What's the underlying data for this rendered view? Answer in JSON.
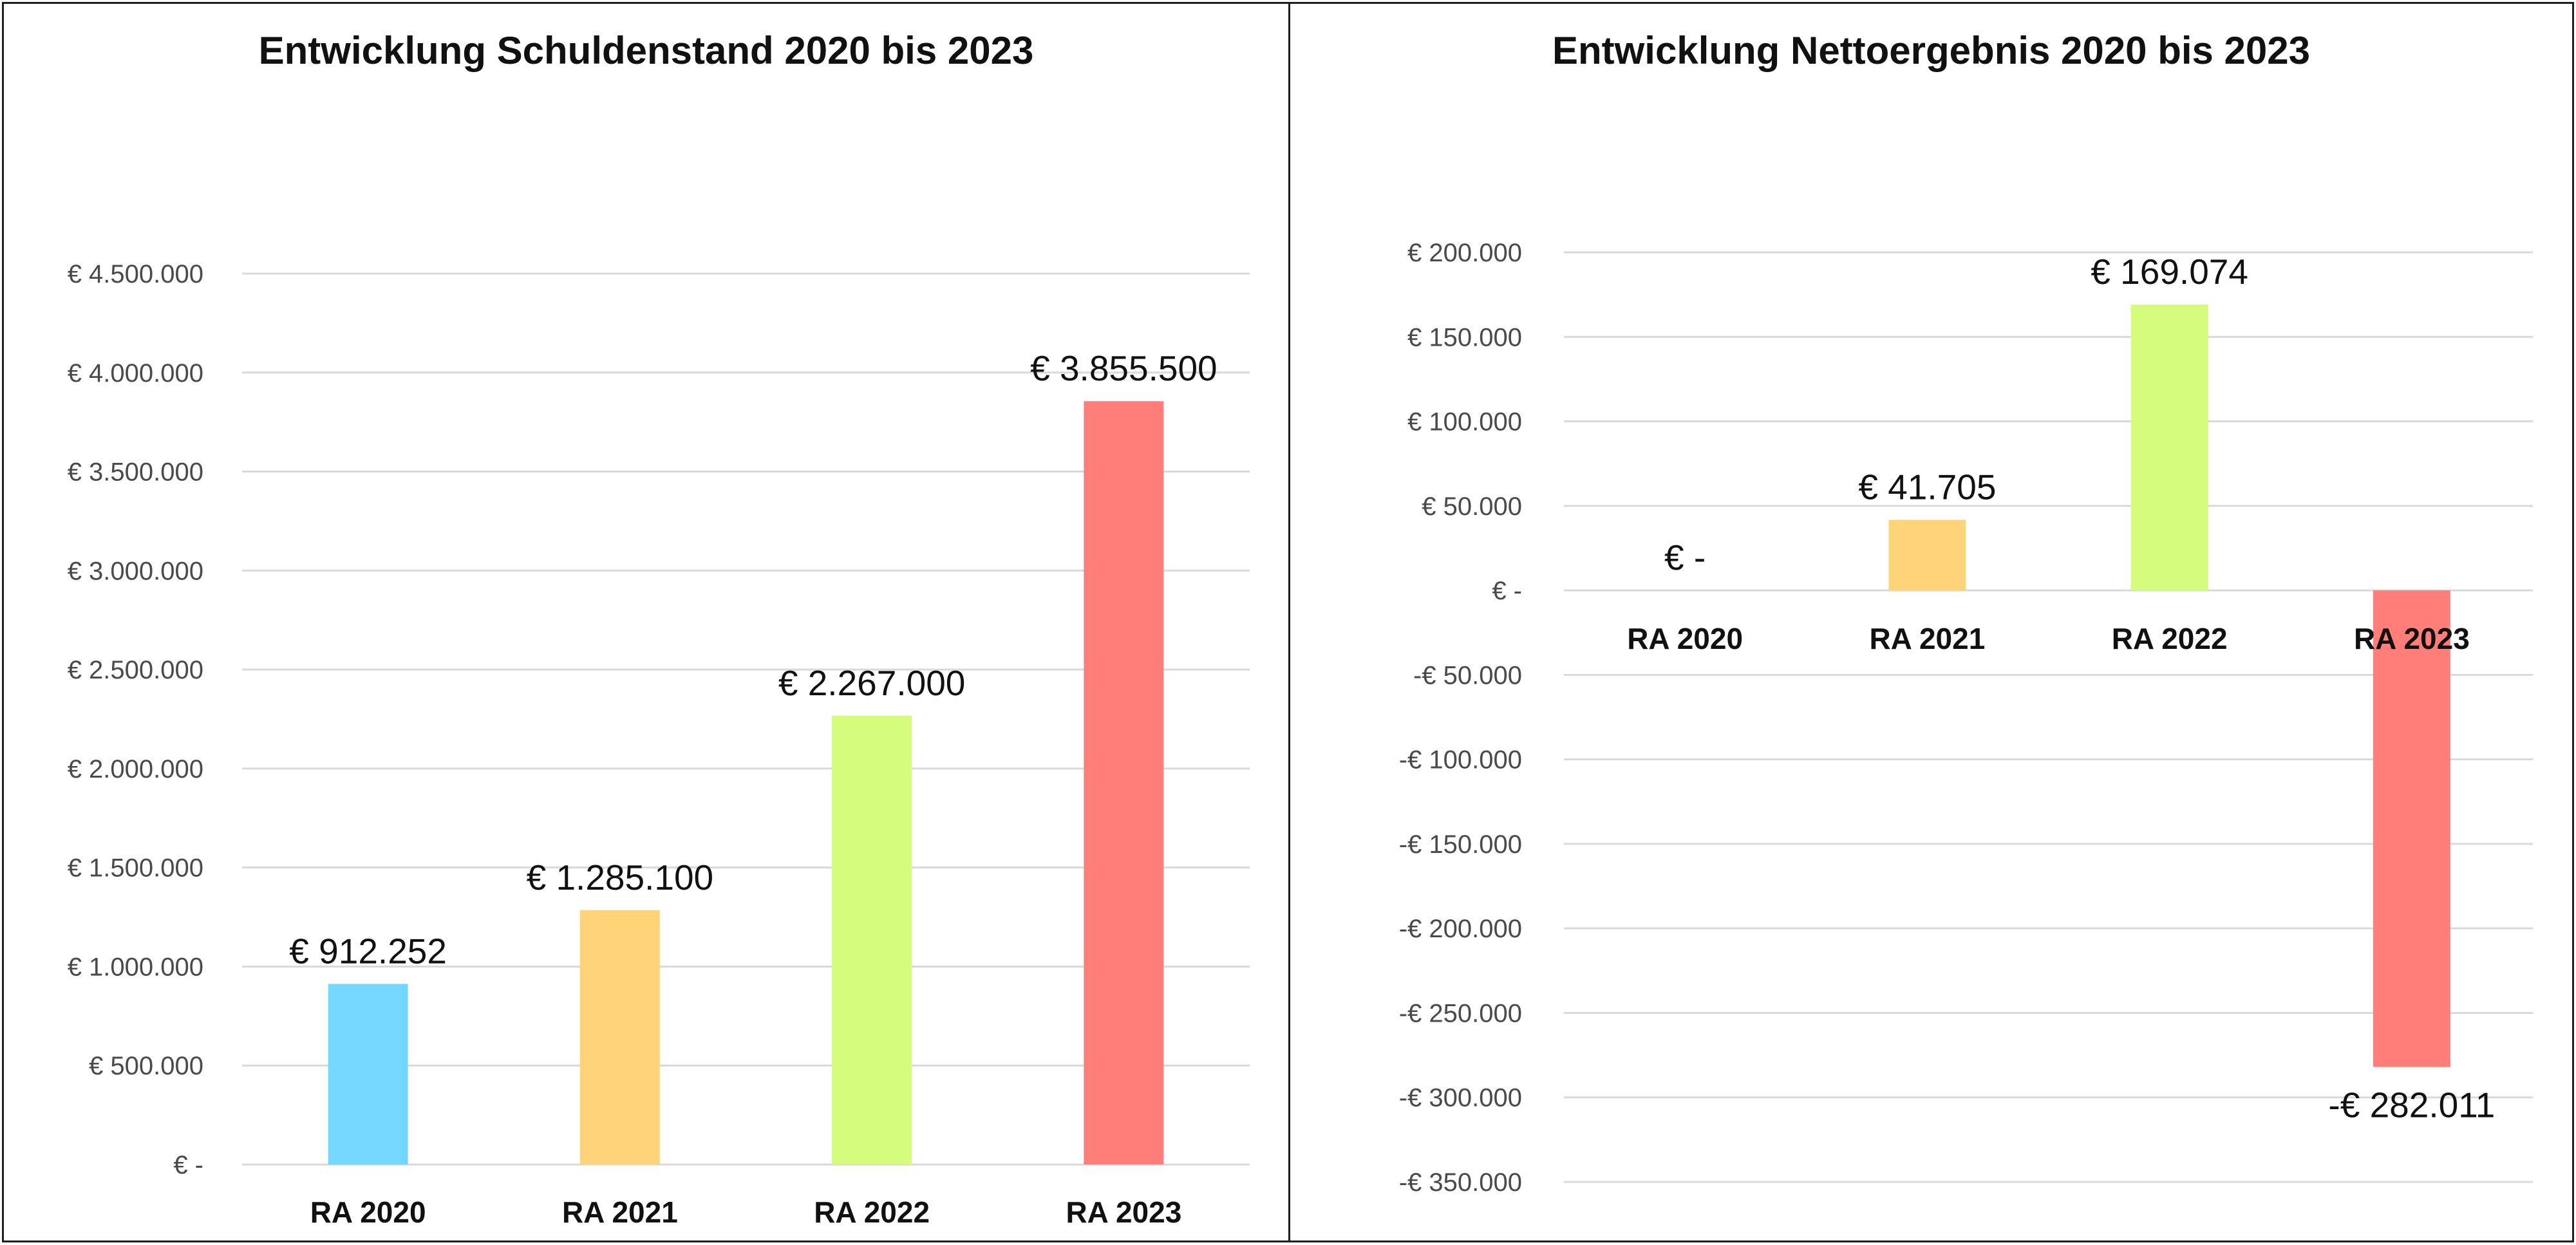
{
  "chart_data": [
    {
      "type": "bar",
      "title": "Entwicklung Schuldenstand 2020 bis 2023",
      "categories": [
        "RA 2020",
        "RA 2021",
        "RA 2022",
        "RA 2023"
      ],
      "values": [
        912252,
        1285100,
        2267000,
        3855500
      ],
      "value_labels": [
        "€ 912.252",
        "€ 1.285.100",
        "€ 2.267.000",
        "€ 3.855.500"
      ],
      "colors": [
        "#75d6ff",
        "#ffd479",
        "#d4fb79",
        "#ff7e79"
      ],
      "ylim": [
        0,
        4500000
      ],
      "yticks": [
        0,
        500000,
        1000000,
        1500000,
        2000000,
        2500000,
        3000000,
        3500000,
        4000000,
        4500000
      ],
      "ytick_labels": [
        "€ -",
        "€ 500.000",
        "€ 1.000.000",
        "€ 1.500.000",
        "€ 2.000.000",
        "€ 2.500.000",
        "€ 3.000.000",
        "€ 3.500.000",
        "€ 4.000.000",
        "€ 4.500.000"
      ],
      "grid": true
    },
    {
      "type": "bar",
      "title": "Entwicklung Nettoergebnis 2020 bis 2023",
      "categories": [
        "RA 2020",
        "RA 2021",
        "RA 2022",
        "RA 2023"
      ],
      "values": [
        0,
        41705,
        169074,
        -282011
      ],
      "value_labels": [
        "€ -",
        "€ 41.705",
        "€ 169.074",
        "-€ 282.011"
      ],
      "colors": [
        "#75d6ff",
        "#ffd479",
        "#d4fb79",
        "#ff7e79"
      ],
      "ylim": [
        -350000,
        200000
      ],
      "yticks": [
        200000,
        150000,
        100000,
        50000,
        0,
        -50000,
        -100000,
        -150000,
        -200000,
        -250000,
        -300000,
        -350000
      ],
      "ytick_labels": [
        "€ 200.000",
        "€ 150.000",
        "€ 100.000",
        "€ 50.000",
        "€ -",
        "-€ 50.000",
        "-€ 100.000",
        "-€ 150.000",
        "-€ 200.000",
        "-€ 250.000",
        "-€ 300.000",
        "-€ 350.000"
      ],
      "grid": true
    }
  ]
}
